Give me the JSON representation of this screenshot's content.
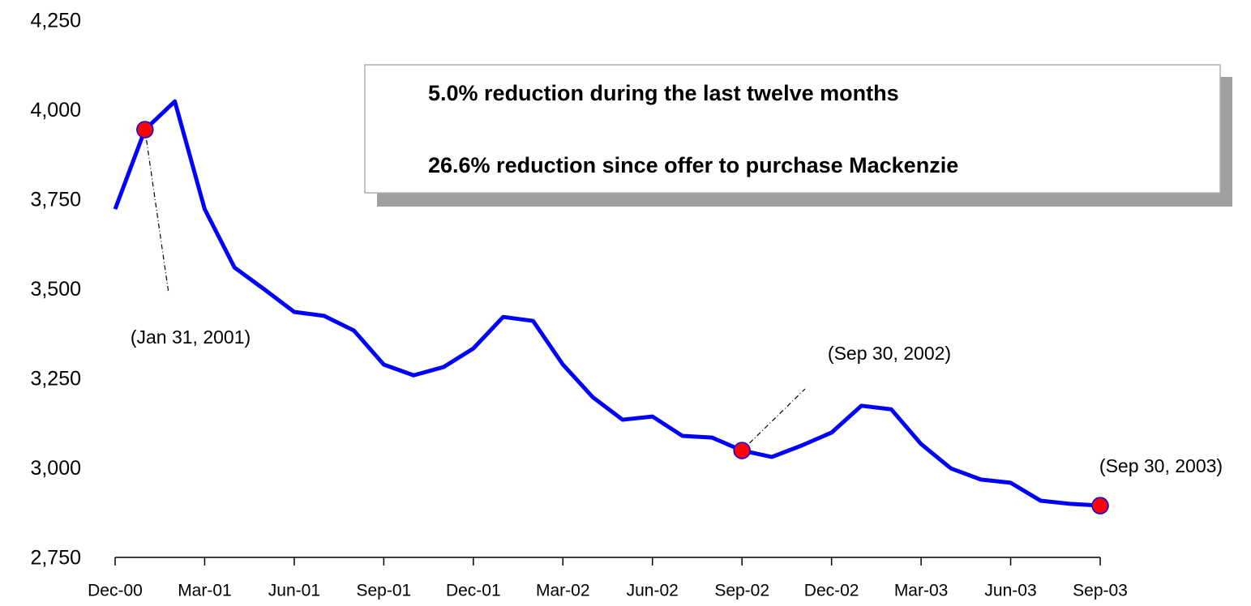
{
  "chart_data": {
    "type": "line",
    "categories": [
      "Dec-00",
      null,
      null,
      "Mar-01",
      null,
      null,
      "Jun-01",
      null,
      null,
      "Sep-01",
      null,
      null,
      "Dec-01",
      null,
      null,
      "Mar-02",
      null,
      null,
      "Jun-02",
      null,
      null,
      "Sep-02",
      null,
      null,
      "Dec-02",
      null,
      null,
      "Mar-03",
      null,
      null,
      "Jun-03",
      null,
      null,
      "Sep-03"
    ],
    "values": [
      3727,
      3949,
      4028,
      3727,
      3564,
      3503,
      3440,
      3429,
      3388,
      3293,
      3263,
      3286,
      3338,
      3426,
      3415,
      3293,
      3202,
      3139,
      3148,
      3094,
      3089,
      3053,
      3035,
      3067,
      3103,
      3178,
      3168,
      3071,
      3003,
      2972,
      2963,
      2913,
      2904,
      2899
    ],
    "color": "#0000ff",
    "marker_color": "#ff0000",
    "ylim": [
      2750,
      4250
    ],
    "yticks": [
      {
        "value": 2750,
        "label": "2,750"
      },
      {
        "value": 3000,
        "label": "3,000"
      },
      {
        "value": 3250,
        "label": "3,250"
      },
      {
        "value": 3500,
        "label": "3,500"
      },
      {
        "value": 3750,
        "label": "3,750"
      },
      {
        "value": 4000,
        "label": "4,000"
      },
      {
        "value": 4250,
        "label": "4,250"
      }
    ],
    "annotations": [
      {
        "text": "(Jan 31, 2001)",
        "point": 1
      },
      {
        "text": "(Sep 30, 2002)",
        "point": 21
      },
      {
        "text": "(Sep 30, 2003)",
        "point": 33
      }
    ],
    "box_text": [
      "5.0% reduction during the last twelve months",
      "26.6% reduction since offer to purchase Mackenzie"
    ]
  }
}
